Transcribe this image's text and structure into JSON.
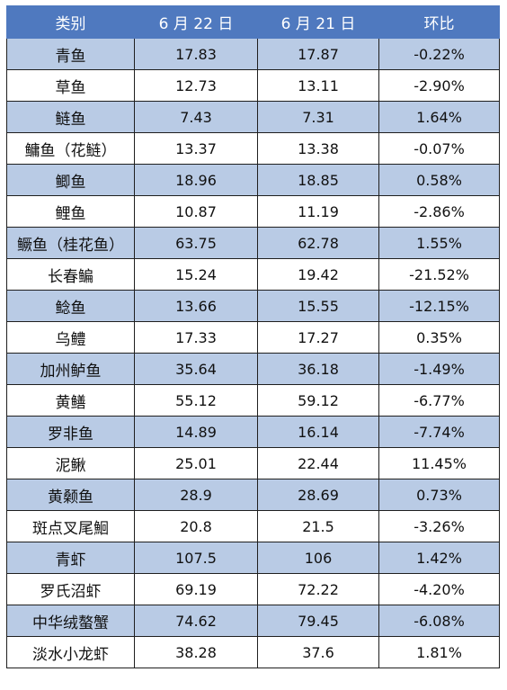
{
  "table": {
    "headers": [
      "类别",
      "6 月 22 日",
      "6 月 21 日",
      "环比"
    ],
    "rows": [
      [
        "青鱼",
        "17.83",
        "17.87",
        "-0.22%"
      ],
      [
        "草鱼",
        "12.73",
        "13.11",
        "-2.90%"
      ],
      [
        "鲢鱼",
        "7.43",
        "7.31",
        "1.64%"
      ],
      [
        "鳙鱼（花鲢）",
        "13.37",
        "13.38",
        "-0.07%"
      ],
      [
        "鲫鱼",
        "18.96",
        "18.85",
        "0.58%"
      ],
      [
        "鲤鱼",
        "10.87",
        "11.19",
        "-2.86%"
      ],
      [
        "鳜鱼（桂花鱼）",
        "63.75",
        "62.78",
        "1.55%"
      ],
      [
        "长春鳊",
        "15.24",
        "19.42",
        "-21.52%"
      ],
      [
        "鲶鱼",
        "13.66",
        "15.55",
        "-12.15%"
      ],
      [
        "乌鳢",
        "17.33",
        "17.27",
        "0.35%"
      ],
      [
        "加州鲈鱼",
        "35.64",
        "36.18",
        "-1.49%"
      ],
      [
        "黄鳝",
        "55.12",
        "59.12",
        "-6.77%"
      ],
      [
        "罗非鱼",
        "14.89",
        "16.14",
        "-7.74%"
      ],
      [
        "泥鳅",
        "25.01",
        "22.44",
        "11.45%"
      ],
      [
        "黄颡鱼",
        "28.9",
        "28.69",
        "0.73%"
      ],
      [
        "斑点叉尾鮰",
        "20.8",
        "21.5",
        "-3.26%"
      ],
      [
        "青虾",
        "107.5",
        "106",
        "1.42%"
      ],
      [
        "罗氏沼虾",
        "69.19",
        "72.22",
        "-4.20%"
      ],
      [
        "中华绒螯蟹",
        "74.62",
        "79.45",
        "-6.08%"
      ],
      [
        "淡水小龙虾",
        "38.28",
        "37.6",
        "1.81%"
      ]
    ]
  },
  "colors": {
    "header_bg": "#4f79bf",
    "header_text": "#ffffff",
    "band_bg": "#b9cbe5",
    "plain_bg": "#ffffff",
    "border": "#1f1f1f"
  }
}
